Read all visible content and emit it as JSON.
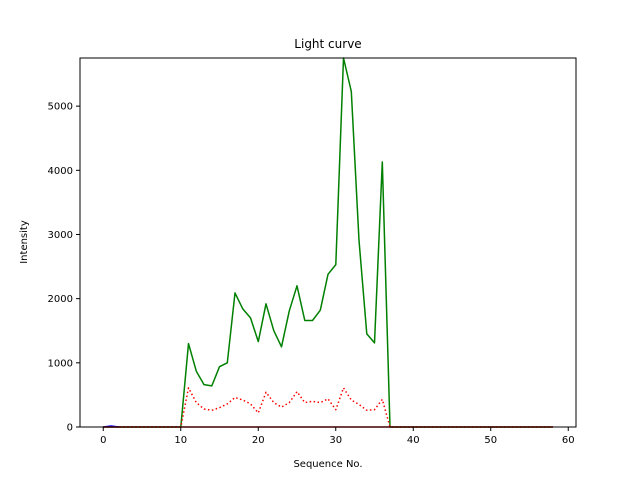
{
  "chart_data": {
    "type": "line",
    "title": "Light curve",
    "xlabel": "Sequence No.",
    "ylabel": "Intensity",
    "xlim": [
      -3,
      61
    ],
    "ylim": [
      0,
      5750
    ],
    "xticks": [
      0,
      10,
      20,
      30,
      40,
      50,
      60
    ],
    "yticks": [
      0,
      1000,
      2000,
      3000,
      4000,
      5000
    ],
    "grid": false,
    "series": [
      {
        "color": "#008000",
        "style": "solid",
        "x": [
          0,
          1,
          2,
          3,
          4,
          5,
          6,
          7,
          8,
          9,
          10,
          11,
          12,
          13,
          14,
          15,
          16,
          17,
          18,
          19,
          20,
          21,
          22,
          23,
          24,
          25,
          26,
          27,
          28,
          29,
          30,
          31,
          32,
          33,
          34,
          35,
          36,
          37,
          38,
          39,
          40,
          41,
          42,
          43,
          44,
          45,
          46,
          47,
          48,
          49,
          50,
          51,
          52,
          53,
          54,
          55,
          56,
          57,
          58
        ],
        "values": [
          0,
          0,
          0,
          0,
          0,
          0,
          0,
          0,
          0,
          0,
          0,
          1300,
          870,
          660,
          640,
          940,
          1000,
          2090,
          1840,
          1700,
          1330,
          1920,
          1500,
          1250,
          1810,
          2200,
          1660,
          1660,
          1820,
          2380,
          2530,
          5750,
          5230,
          2910,
          1450,
          1310,
          4130,
          0,
          0,
          0,
          0,
          0,
          0,
          0,
          0,
          0,
          0,
          0,
          0,
          0,
          0,
          0,
          0,
          0,
          0,
          0,
          0,
          0,
          0
        ]
      },
      {
        "color": "#ff0000",
        "style": "dotted",
        "x": [
          0,
          1,
          2,
          3,
          4,
          5,
          6,
          7,
          8,
          9,
          10,
          11,
          12,
          13,
          14,
          15,
          16,
          17,
          18,
          19,
          20,
          21,
          22,
          23,
          24,
          25,
          26,
          27,
          28,
          29,
          30,
          31,
          32,
          33,
          34,
          35,
          36,
          37,
          38,
          39,
          40,
          41,
          42,
          43,
          44,
          45,
          46,
          47,
          48,
          49,
          50,
          51,
          52,
          53,
          54,
          55,
          56,
          57,
          58
        ],
        "values": [
          0,
          0,
          0,
          0,
          0,
          0,
          0,
          0,
          0,
          0,
          0,
          610,
          380,
          280,
          260,
          300,
          360,
          460,
          420,
          360,
          220,
          540,
          380,
          310,
          380,
          550,
          380,
          400,
          380,
          440,
          270,
          610,
          420,
          350,
          260,
          270,
          430,
          0,
          0,
          0,
          0,
          0,
          0,
          0,
          0,
          0,
          0,
          0,
          0,
          0,
          0,
          0,
          0,
          0,
          0,
          0,
          0,
          0,
          0
        ]
      },
      {
        "color": "#0000ff",
        "style": "solid",
        "x": [
          0,
          1,
          2
        ],
        "values": [
          0,
          15,
          0
        ]
      },
      {
        "color": "#c00000",
        "style": "solid",
        "x": [
          0,
          58
        ],
        "values": [
          0,
          0
        ]
      }
    ]
  }
}
